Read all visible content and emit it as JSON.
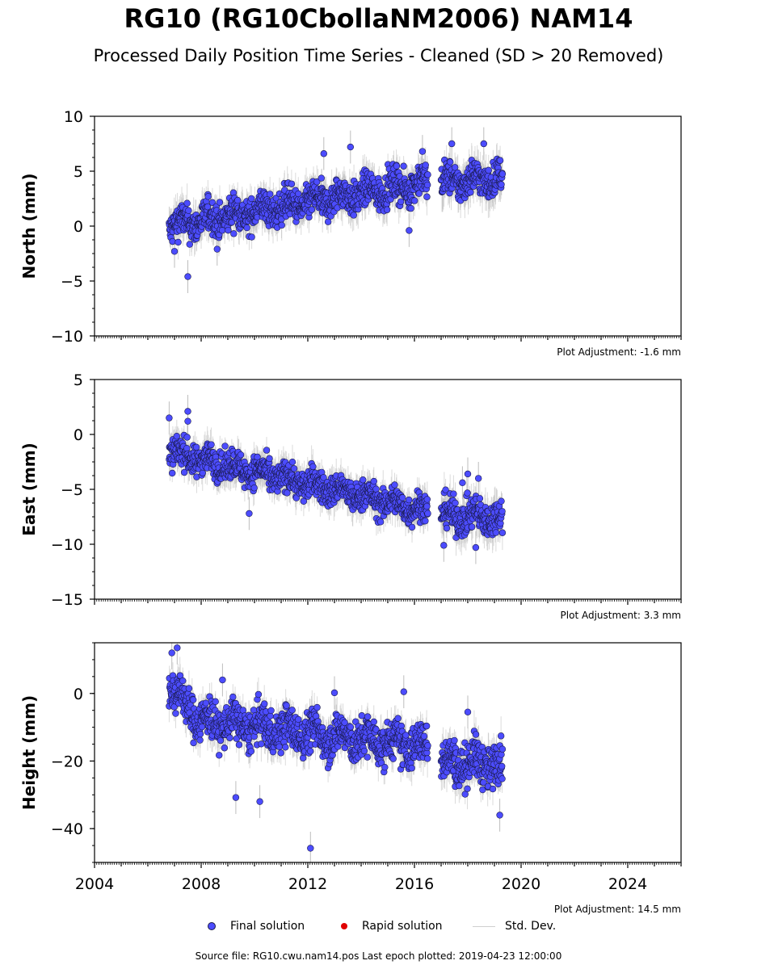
{
  "title": "RG10 (RG10CbollaNM2006) NAM14",
  "subtitle": "Processed Daily Position Time Series - Cleaned (SD > 20 Removed)",
  "legend": {
    "final": "Final solution",
    "rapid": "Rapid solution",
    "std": "Std. Dev."
  },
  "footer": "Source file: RG10.cwu.nam14.pos  Last epoch plotted: 2019-04-23 12:00:00",
  "colors": {
    "final_fill": "#4c4cff",
    "final_edge": "#1a1a4a",
    "rapid": "#e00000",
    "std_dev": "#bdbdbd"
  },
  "chart_data": [
    {
      "type": "scatter",
      "ylabel": "North (mm)",
      "ylim": [
        -10,
        10
      ],
      "yticks": [
        -10,
        -5,
        0,
        5,
        10
      ],
      "ytick_labels": [
        "−10",
        "−5",
        "0",
        "5",
        "10"
      ],
      "xlim": [
        2004,
        2026
      ],
      "adjustment": "Plot Adjustment: -1.6 mm",
      "segments": [
        {
          "x_start": 2006.8,
          "x_end": 2016.5,
          "y_start": 0.0,
          "y_end": 4.0,
          "spread": 1.0,
          "sd": 1.3
        },
        {
          "x_start": 2017.0,
          "x_end": 2019.3,
          "y_start": 4.0,
          "y_end": 4.4,
          "spread": 1.0,
          "sd": 1.4
        }
      ],
      "outliers": [
        {
          "x": 2007.5,
          "y": -4.6
        },
        {
          "x": 2013.6,
          "y": 7.2
        },
        {
          "x": 2016.3,
          "y": 6.8
        },
        {
          "x": 2017.4,
          "y": 7.5
        },
        {
          "x": 2018.6,
          "y": 7.5
        },
        {
          "x": 2015.8,
          "y": -0.4
        },
        {
          "x": 2008.6,
          "y": -2.1
        },
        {
          "x": 2007.0,
          "y": -2.3
        },
        {
          "x": 2012.6,
          "y": 6.6
        }
      ]
    },
    {
      "type": "scatter",
      "ylabel": "East (mm)",
      "ylim": [
        -15,
        5
      ],
      "yticks": [
        -15,
        -10,
        -5,
        0,
        5
      ],
      "ytick_labels": [
        "−15",
        "−10",
        "−5",
        "0",
        "5"
      ],
      "xlim": [
        2004,
        2026
      ],
      "adjustment": "Plot Adjustment: 3.3 mm",
      "segments": [
        {
          "x_start": 2006.8,
          "x_end": 2016.5,
          "y_start": -1.6,
          "y_end": -7.0,
          "spread": 0.9,
          "sd": 1.2
        },
        {
          "x_start": 2017.0,
          "x_end": 2019.3,
          "y_start": -7.3,
          "y_end": -7.6,
          "spread": 1.0,
          "sd": 1.4
        }
      ],
      "outliers": [
        {
          "x": 2006.8,
          "y": 1.5
        },
        {
          "x": 2007.5,
          "y": 2.1
        },
        {
          "x": 2007.5,
          "y": 1.2
        },
        {
          "x": 2018.0,
          "y": -3.6
        },
        {
          "x": 2018.4,
          "y": -4.0
        },
        {
          "x": 2017.8,
          "y": -4.4
        },
        {
          "x": 2017.1,
          "y": -10.1
        },
        {
          "x": 2018.3,
          "y": -10.3
        },
        {
          "x": 2009.8,
          "y": -7.2
        }
      ]
    },
    {
      "type": "scatter",
      "ylabel": "Height (mm)",
      "ylim": [
        -50,
        15
      ],
      "yticks": [
        -40,
        -20,
        0
      ],
      "ytick_labels": [
        "−40",
        "−20",
        "0"
      ],
      "xlim": [
        2004,
        2026
      ],
      "xticks": [
        2004,
        2008,
        2012,
        2016,
        2020,
        2024
      ],
      "xtick_labels": [
        "2004",
        "2008",
        "2012",
        "2016",
        "2020",
        "2024"
      ],
      "adjustment": "Plot Adjustment: 14.5 mm",
      "segments": [
        {
          "x_start": 2006.8,
          "x_end": 2008.0,
          "y_start": 2.0,
          "y_end": -8.0,
          "spread": 4.0,
          "sd": 4.0
        },
        {
          "x_start": 2008.0,
          "x_end": 2016.5,
          "y_start": -8.0,
          "y_end": -16.0,
          "spread": 4.0,
          "sd": 4.0
        },
        {
          "x_start": 2017.0,
          "x_end": 2019.3,
          "y_start": -20.0,
          "y_end": -21.0,
          "spread": 4.2,
          "sd": 4.5
        }
      ],
      "outliers": [
        {
          "x": 2012.1,
          "y": -45.8
        },
        {
          "x": 2019.2,
          "y": -36.0
        },
        {
          "x": 2010.2,
          "y": -32.0
        },
        {
          "x": 2009.3,
          "y": -30.8
        },
        {
          "x": 2006.9,
          "y": 12.0
        },
        {
          "x": 2007.1,
          "y": 13.5
        },
        {
          "x": 2015.6,
          "y": 0.5
        },
        {
          "x": 2018.0,
          "y": -5.5
        },
        {
          "x": 2013.0,
          "y": 0.2
        },
        {
          "x": 2008.8,
          "y": 4.0
        }
      ]
    }
  ]
}
